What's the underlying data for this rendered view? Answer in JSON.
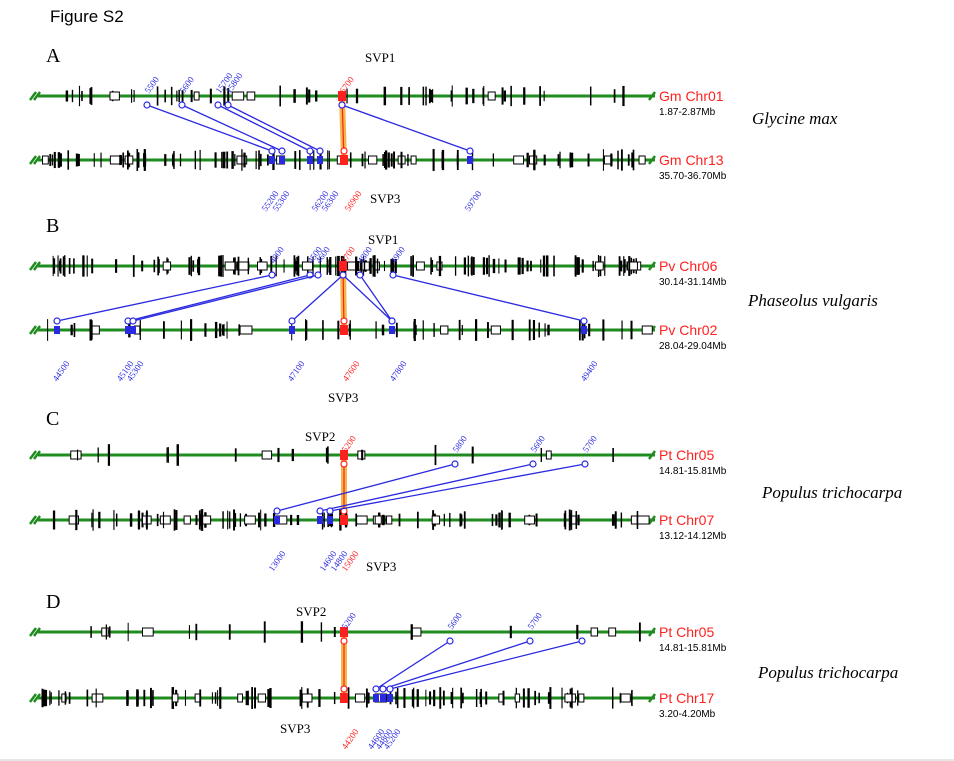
{
  "figure_label": "Figure S2",
  "colors": {
    "chromosome": "#1f8c1f",
    "link": "#2a2ae0",
    "highlight": "#ff2020",
    "highlight_band": "#f2b94a",
    "gene": "#000000",
    "species": "#000000"
  },
  "panels": [
    {
      "letter": "A",
      "species": "Glycine max",
      "top_gene": "SVP1",
      "bottom_gene": "SVP3",
      "top": {
        "name": "Gm Chr01",
        "range": "1.87-2.87Mb",
        "density": "medium"
      },
      "bottom": {
        "name": "Gm Chr13",
        "range": "35.70-36.70Mb",
        "density": "high"
      },
      "top_labels": [
        {
          "text": "5500",
          "color": "blue"
        },
        {
          "text": "5600",
          "color": "blue"
        },
        {
          "text": "15700",
          "color": "blue"
        },
        {
          "text": "15800",
          "color": "blue"
        },
        {
          "text": "6700",
          "color": "red"
        }
      ],
      "bottom_labels": [
        {
          "text": "55200",
          "color": "blue"
        },
        {
          "text": "55300",
          "color": "blue"
        },
        {
          "text": "56200",
          "color": "blue"
        },
        {
          "text": "56300",
          "color": "blue"
        },
        {
          "text": "56900",
          "color": "red"
        },
        {
          "text": "59700",
          "color": "blue"
        }
      ]
    },
    {
      "letter": "B",
      "species": "Phaseolus vulgaris",
      "top_gene": "SVP1",
      "bottom_gene": "SVP3",
      "top": {
        "name": "Pv Chr06",
        "range": "30.14-31.14Mb",
        "density": "very-high"
      },
      "bottom": {
        "name": "Pv Chr02",
        "range": "28.04-29.04Mb",
        "density": "medium"
      },
      "top_labels": [
        {
          "text": "4000",
          "color": "blue"
        },
        {
          "text": "4500",
          "color": "blue"
        },
        {
          "text": "4600",
          "color": "blue"
        },
        {
          "text": "4700",
          "color": "red"
        },
        {
          "text": "4800",
          "color": "blue"
        },
        {
          "text": "4900",
          "color": "blue"
        }
      ],
      "bottom_labels": [
        {
          "text": "44500",
          "color": "blue"
        },
        {
          "text": "45100",
          "color": "blue"
        },
        {
          "text": "45300",
          "color": "blue"
        },
        {
          "text": "47100",
          "color": "blue"
        },
        {
          "text": "47600",
          "color": "red"
        },
        {
          "text": "47800",
          "color": "blue"
        },
        {
          "text": "49400",
          "color": "blue"
        }
      ]
    },
    {
      "letter": "C",
      "species": "Populus trichocarpa",
      "top_gene": "SVP2",
      "bottom_gene": "SVP3",
      "top": {
        "name": "Pt Chr05",
        "range": "14.81-15.81Mb",
        "density": "low"
      },
      "bottom": {
        "name": "Pt Chr07",
        "range": "13.12-14.12Mb",
        "density": "high"
      },
      "top_labels": [
        {
          "text": "5200",
          "color": "red"
        },
        {
          "text": "5800",
          "color": "blue"
        },
        {
          "text": "5600",
          "color": "blue"
        },
        {
          "text": "5700",
          "color": "blue"
        }
      ],
      "bottom_labels": [
        {
          "text": "13000",
          "color": "blue"
        },
        {
          "text": "14600",
          "color": "blue"
        },
        {
          "text": "14800",
          "color": "blue"
        },
        {
          "text": "15000",
          "color": "red"
        }
      ]
    },
    {
      "letter": "D",
      "species": "Populus trichocarpa",
      "top_gene": "SVP2",
      "bottom_gene": "SVP3",
      "top": {
        "name": "Pt Chr05",
        "range": "14.81-15.81Mb",
        "density": "low"
      },
      "bottom": {
        "name": "Pt Chr17",
        "range": "3.20-4.20Mb",
        "density": "high"
      },
      "top_labels": [
        {
          "text": "5200",
          "color": "blue"
        },
        {
          "text": "5600",
          "color": "blue"
        },
        {
          "text": "5700",
          "color": "blue"
        }
      ],
      "bottom_labels": [
        {
          "text": "44200",
          "color": "red"
        },
        {
          "text": "44600",
          "color": "blue"
        },
        {
          "text": "44800",
          "color": "blue"
        },
        {
          "text": "45200",
          "color": "blue"
        }
      ]
    }
  ]
}
